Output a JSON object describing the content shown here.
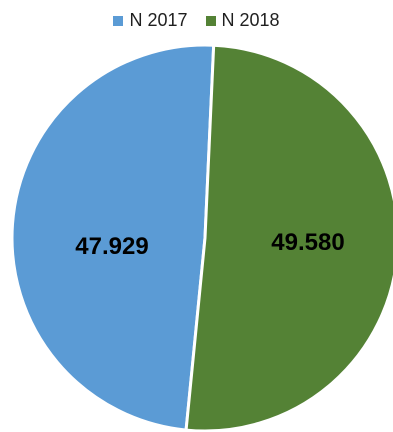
{
  "chart_data": {
    "type": "pie",
    "title": "",
    "series": [
      {
        "name": "N 2017",
        "value": 47929,
        "label": "47.929",
        "color": "#5B9BD5"
      },
      {
        "name": "N 2018",
        "value": 49580,
        "label": "49.580",
        "color": "#548235"
      }
    ],
    "legend_position": "top"
  }
}
